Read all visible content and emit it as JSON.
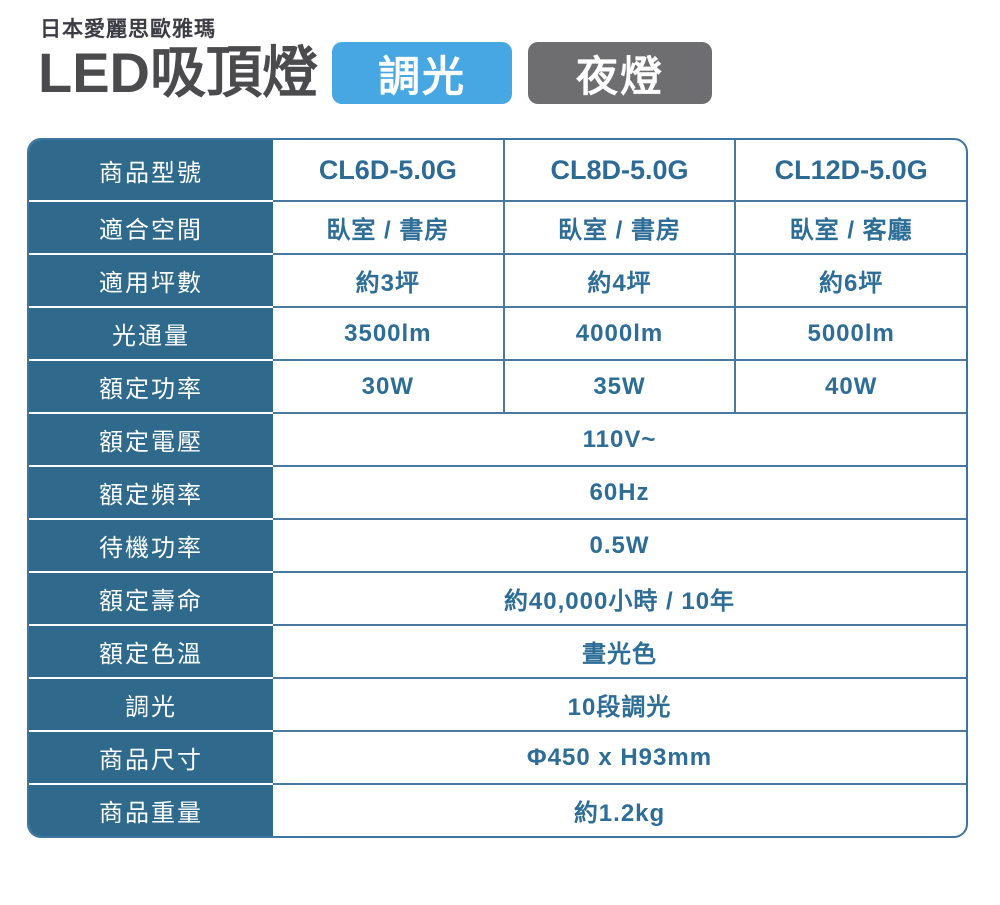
{
  "header": {
    "brand": "日本愛麗思歐雅瑪",
    "title": "LED吸頂燈",
    "badges": [
      {
        "label": "調光",
        "color": "#47a7e2"
      },
      {
        "label": "夜燈",
        "color": "#6e6e70"
      }
    ]
  },
  "colors": {
    "label_column_bg": "#2f6a8d",
    "table_border": "#3e74a0",
    "grid_line": "#49799f",
    "data_text": "#2d6d96",
    "title_text": "#4b4b4d",
    "badge_blue": "#47a7e2",
    "badge_gray": "#6e6e70"
  },
  "table": {
    "rows": [
      {
        "label": "商品型號",
        "values": [
          "CL6D-5.0G",
          "CL8D-5.0G",
          "CL12D-5.0G"
        ]
      },
      {
        "label": "適合空間",
        "values": [
          "臥室 / 書房",
          "臥室 / 書房",
          "臥室 / 客廳"
        ]
      },
      {
        "label": "適用坪數",
        "values": [
          "約3坪",
          "約4坪",
          "約6坪"
        ]
      },
      {
        "label": "光通量",
        "values": [
          "3500lm",
          "4000lm",
          "5000lm"
        ]
      },
      {
        "label": "額定功率",
        "values": [
          "30W",
          "35W",
          "40W"
        ]
      },
      {
        "label": "額定電壓",
        "value": "110V~"
      },
      {
        "label": "額定頻率",
        "value": "60Hz"
      },
      {
        "label": "待機功率",
        "value": "0.5W"
      },
      {
        "label": "額定壽命",
        "value": "約40,000小時 / 10年"
      },
      {
        "label": "額定色溫",
        "value": "晝光色"
      },
      {
        "label": "調光",
        "value": "10段調光"
      },
      {
        "label": "商品尺寸",
        "value": "Φ450 x H93mm"
      },
      {
        "label": "商品重量",
        "value": "約1.2kg"
      }
    ]
  }
}
